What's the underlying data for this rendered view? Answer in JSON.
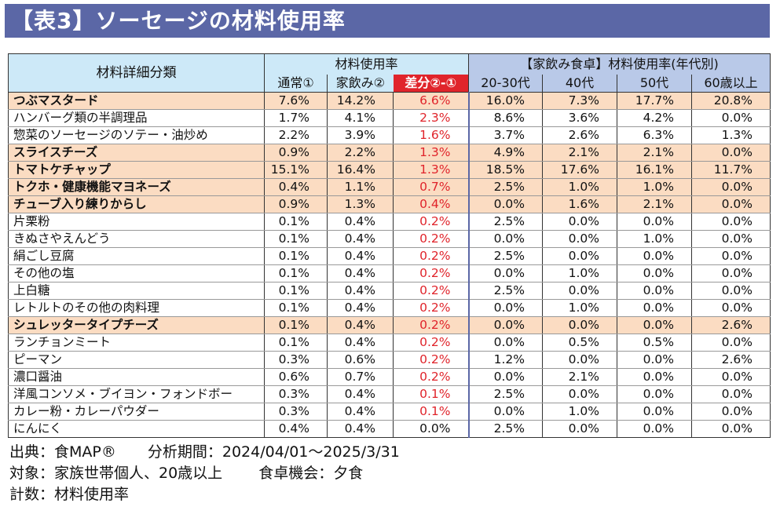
{
  "title": "【表3】ソーセージの材料使用率",
  "header": {
    "category": "材料詳細分類",
    "usage_group": "材料使用率",
    "normal": "通常①",
    "home_drink": "家飲み②",
    "diff": "差分②-①",
    "age_group": "【家飲み食卓】材料使用率(年代別)",
    "ages": [
      "20-30代",
      "40代",
      "50代",
      "60歳以上"
    ]
  },
  "colors": {
    "title_bg": "#5b67a6",
    "highlight_row": "#fbdcc2",
    "diff_red": "#e0242b",
    "header_blue": "#cde9f8",
    "header_age": "#b9c9e8"
  },
  "rows": [
    {
      "name": "つぶマスタード",
      "highlight": true,
      "v": [
        "7.6%",
        "14.2%",
        "6.6%",
        "16.0%",
        "7.3%",
        "17.7%",
        "20.8%"
      ]
    },
    {
      "name": "ハンバーグ類の半調理品",
      "highlight": false,
      "v": [
        "1.7%",
        "4.1%",
        "2.3%",
        "8.6%",
        "3.6%",
        "4.2%",
        "0.0%"
      ]
    },
    {
      "name": "惣菜のソーセージのソテー・油炒め",
      "highlight": false,
      "v": [
        "2.2%",
        "3.9%",
        "1.6%",
        "3.7%",
        "2.6%",
        "6.3%",
        "1.3%"
      ]
    },
    {
      "name": "スライスチーズ",
      "highlight": true,
      "v": [
        "0.9%",
        "2.2%",
        "1.3%",
        "4.9%",
        "2.1%",
        "2.1%",
        "0.0%"
      ]
    },
    {
      "name": "トマトケチャップ",
      "highlight": true,
      "v": [
        "15.1%",
        "16.4%",
        "1.3%",
        "18.5%",
        "17.6%",
        "16.1%",
        "11.7%"
      ]
    },
    {
      "name": "トクホ・健康機能マヨネーズ",
      "highlight": true,
      "v": [
        "0.4%",
        "1.1%",
        "0.7%",
        "2.5%",
        "1.0%",
        "1.0%",
        "0.0%"
      ]
    },
    {
      "name": "チューブ入り練りからし",
      "highlight": true,
      "v": [
        "0.9%",
        "1.3%",
        "0.4%",
        "0.0%",
        "1.6%",
        "2.1%",
        "0.0%"
      ]
    },
    {
      "name": "片栗粉",
      "highlight": false,
      "v": [
        "0.1%",
        "0.4%",
        "0.2%",
        "2.5%",
        "0.0%",
        "0.0%",
        "0.0%"
      ]
    },
    {
      "name": "きぬさやえんどう",
      "highlight": false,
      "v": [
        "0.1%",
        "0.4%",
        "0.2%",
        "0.0%",
        "0.0%",
        "1.0%",
        "0.0%"
      ]
    },
    {
      "name": "絹ごし豆腐",
      "highlight": false,
      "v": [
        "0.1%",
        "0.4%",
        "0.2%",
        "2.5%",
        "0.0%",
        "0.0%",
        "0.0%"
      ]
    },
    {
      "name": "その他の塩",
      "highlight": false,
      "v": [
        "0.1%",
        "0.4%",
        "0.2%",
        "0.0%",
        "1.0%",
        "0.0%",
        "0.0%"
      ]
    },
    {
      "name": "上白糖",
      "highlight": false,
      "v": [
        "0.1%",
        "0.4%",
        "0.2%",
        "2.5%",
        "0.0%",
        "0.0%",
        "0.0%"
      ]
    },
    {
      "name": "レトルトのその他の肉料理",
      "highlight": false,
      "v": [
        "0.1%",
        "0.4%",
        "0.2%",
        "0.0%",
        "1.0%",
        "0.0%",
        "0.0%"
      ]
    },
    {
      "name": "シュレッタータイプチーズ",
      "highlight": true,
      "v": [
        "0.1%",
        "0.4%",
        "0.2%",
        "0.0%",
        "0.0%",
        "0.0%",
        "2.6%"
      ]
    },
    {
      "name": "ランチョンミート",
      "highlight": false,
      "v": [
        "0.1%",
        "0.4%",
        "0.2%",
        "0.0%",
        "0.5%",
        "0.5%",
        "0.0%"
      ]
    },
    {
      "name": "ピーマン",
      "highlight": false,
      "v": [
        "0.3%",
        "0.6%",
        "0.2%",
        "1.2%",
        "0.0%",
        "0.0%",
        "2.6%"
      ]
    },
    {
      "name": "濃口醤油",
      "highlight": false,
      "v": [
        "0.6%",
        "0.7%",
        "0.2%",
        "0.0%",
        "2.1%",
        "0.0%",
        "0.0%"
      ]
    },
    {
      "name": "洋風コンソメ・ブイヨン・フォンドボー",
      "highlight": false,
      "v": [
        "0.3%",
        "0.4%",
        "0.1%",
        "2.5%",
        "0.0%",
        "0.0%",
        "0.0%"
      ]
    },
    {
      "name": "カレー粉・カレーパウダー",
      "highlight": false,
      "v": [
        "0.3%",
        "0.4%",
        "0.1%",
        "0.0%",
        "1.0%",
        "0.0%",
        "0.0%"
      ]
    },
    {
      "name": "にんにく",
      "highlight": false,
      "v": [
        "0.4%",
        "0.4%",
        "0.0%",
        "2.5%",
        "0.0%",
        "0.0%",
        "0.0%"
      ]
    }
  ],
  "footer": {
    "source": "出典：食MAP®",
    "period": "分析期間：2024/04/01～2025/3/31",
    "target": "対象：家族世帯個人、20歳以上",
    "occasion": "食卓機会：夕食",
    "metric": "計数：材料使用率"
  }
}
